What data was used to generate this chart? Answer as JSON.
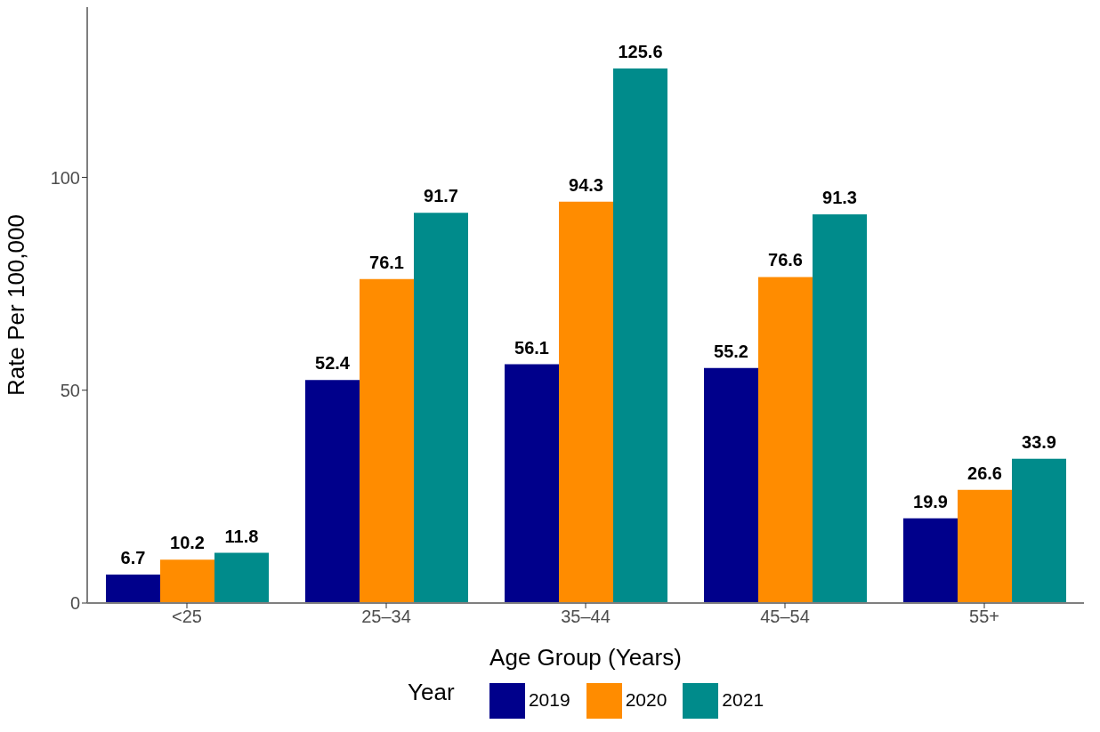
{
  "chart_data": {
    "type": "bar",
    "xlabel": "Age Group (Years)",
    "ylabel": "Rate Per 100,000",
    "legend_title": "Year",
    "categories": [
      "<25",
      "25–34",
      "35–44",
      "45–54",
      "55+"
    ],
    "series": [
      {
        "name": "2019",
        "color": "#00008b",
        "values": [
          6.7,
          52.4,
          56.1,
          55.2,
          19.9
        ]
      },
      {
        "name": "2020",
        "color": "#ff8c00",
        "values": [
          10.2,
          76.1,
          94.3,
          76.6,
          26.6
        ]
      },
      {
        "name": "2021",
        "color": "#008b8b",
        "values": [
          11.8,
          91.7,
          125.6,
          91.3,
          33.9
        ]
      }
    ],
    "ylim": [
      0,
      140
    ],
    "yticks": [
      0,
      50,
      100
    ],
    "grid": false,
    "legend": "bottom",
    "data_labels": true
  }
}
